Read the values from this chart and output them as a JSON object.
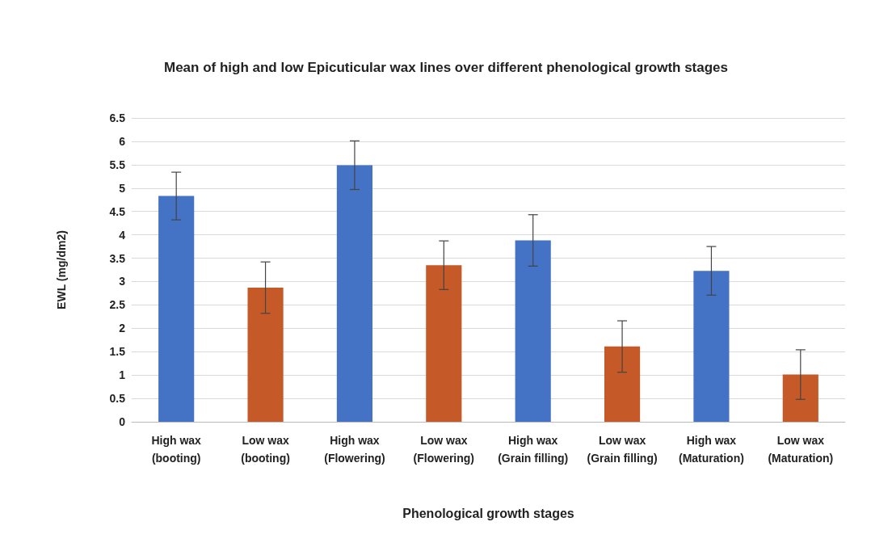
{
  "chart_data": {
    "type": "bar",
    "title": "Mean of high and low Epicuticular wax lines over different phenological growth stages",
    "xlabel": "Phenological growth stages",
    "ylabel": "EWL (mg/dm2)",
    "categories": [
      "High wax\n(booting)",
      "Low wax\n(booting)",
      "High wax\n(Flowering)",
      "Low wax\n(Flowering)",
      "High wax\n(Grain filling)",
      "Low wax\n(Grain filling)",
      "High wax\n(Maturation)",
      "Low wax\n(Maturation)"
    ],
    "values": [
      4.83,
      2.87,
      5.49,
      3.35,
      3.88,
      1.61,
      3.23,
      1.01
    ],
    "errors": [
      0.51,
      0.55,
      0.52,
      0.52,
      0.55,
      0.55,
      0.52,
      0.53
    ],
    "colors": [
      "#4472c4",
      "#c55a28",
      "#4472c4",
      "#c55a28",
      "#4472c4",
      "#c55a28",
      "#4472c4",
      "#c55a28"
    ],
    "ylim": [
      0,
      6.5
    ],
    "yticks": [
      0,
      0.5,
      1,
      1.5,
      2,
      2.5,
      3,
      3.5,
      4,
      4.5,
      5,
      5.5,
      6,
      6.5
    ],
    "grid": "y"
  }
}
